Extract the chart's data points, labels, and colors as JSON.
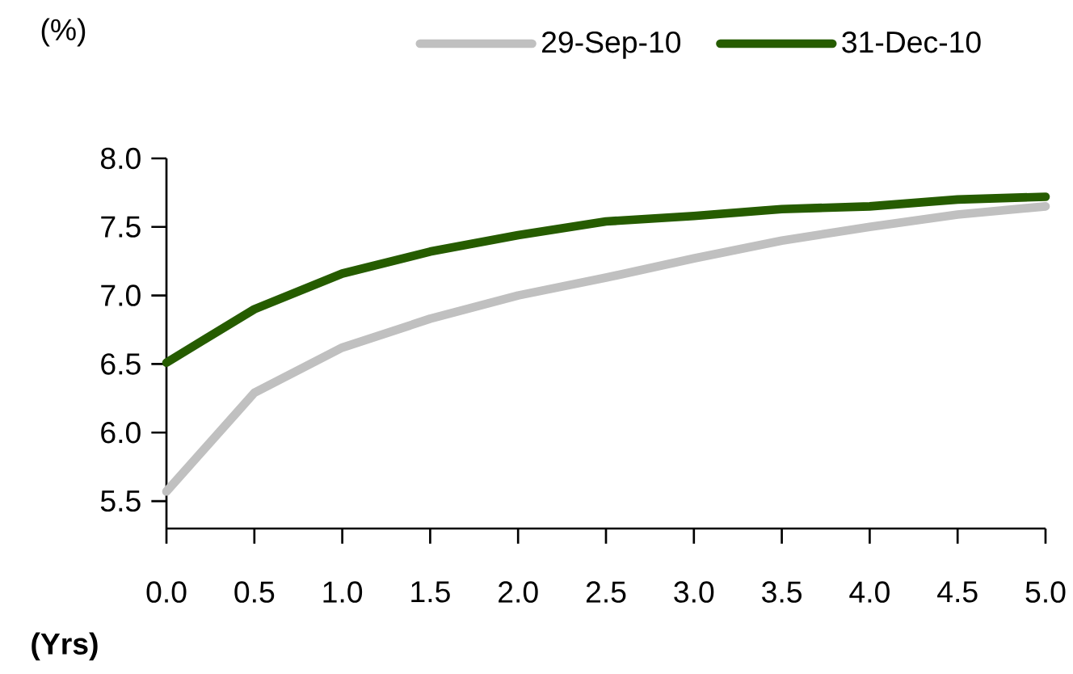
{
  "chart_data": {
    "type": "line",
    "xlabel": "(Yrs)",
    "ylabel": "(%)",
    "x": [
      0,
      0.5,
      1.0,
      1.5,
      2.0,
      2.5,
      3.0,
      3.5,
      4.0,
      4.5,
      5.0
    ],
    "series": [
      {
        "name": "29-Sep-10",
        "color": "#c0c0c0",
        "values": [
          5.57,
          6.29,
          6.62,
          6.83,
          7.0,
          7.13,
          7.27,
          7.4,
          7.5,
          7.59,
          7.65
        ]
      },
      {
        "name": "31-Dec-10",
        "color": "#265c00",
        "values": [
          6.51,
          6.9,
          7.16,
          7.32,
          7.44,
          7.54,
          7.58,
          7.63,
          7.65,
          7.7,
          7.72
        ]
      }
    ],
    "xlim": [
      0,
      5
    ],
    "ylim": [
      5.3,
      8.0
    ],
    "xticks": [
      {
        "value": 0,
        "label": "0.0"
      },
      {
        "value": 0.5,
        "label": "0.5"
      },
      {
        "value": 1,
        "label": "1.0"
      },
      {
        "value": 1.5,
        "label": "1.5"
      },
      {
        "value": 2,
        "label": "2.0"
      },
      {
        "value": 2.5,
        "label": "2.5"
      },
      {
        "value": 3,
        "label": "3.0"
      },
      {
        "value": 3.5,
        "label": "3.5"
      },
      {
        "value": 4,
        "label": "4.0"
      },
      {
        "value": 4.5,
        "label": "4.5"
      },
      {
        "value": 5,
        "label": "5.0"
      }
    ],
    "yticks": [
      {
        "value": 5.5,
        "label": "5.5"
      },
      {
        "value": 6,
        "label": "6.0"
      },
      {
        "value": 6.5,
        "label": "6.5"
      },
      {
        "value": 7,
        "label": "7.0"
      },
      {
        "value": 7.5,
        "label": "7.5"
      },
      {
        "value": 8,
        "label": "8.0"
      }
    ],
    "grid": false,
    "legend": "top",
    "marker": "none",
    "line_style": "solid"
  }
}
